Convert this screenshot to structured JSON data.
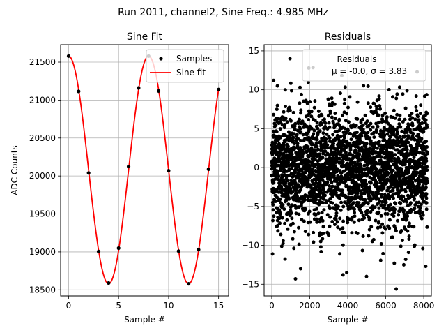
{
  "suptitle": "Run 2011, channel2, Sine Freq.: 4.985 MHz",
  "colors": {
    "samples": "#000000",
    "fit": "#ff0000",
    "grid": "#b0b0b0",
    "legend_border": "#cccccc"
  },
  "chart_data": [
    {
      "type": "line",
      "title": "Sine Fit",
      "xlabel": "Sample #",
      "ylabel": "ADC Counts",
      "xlim": [
        -0.8,
        16.0
      ],
      "ylim": [
        18420,
        21730
      ],
      "xticks": [
        0,
        5,
        10,
        15
      ],
      "xtick_labels": [
        "0",
        "5",
        "10",
        "15"
      ],
      "yticks": [
        18500,
        19000,
        19500,
        20000,
        20500,
        21000,
        21500
      ],
      "ytick_labels": [
        "18500",
        "19000",
        "19500",
        "20000",
        "20500",
        "21000",
        "21500"
      ],
      "grid": true,
      "legend_position": "top-right",
      "series": [
        {
          "name": "Samples",
          "kind": "scatter",
          "x": [
            0,
            1,
            2,
            3,
            4,
            5,
            6,
            7,
            8,
            9,
            10,
            11,
            12,
            13,
            14,
            15
          ],
          "y": [
            21580,
            21115,
            20040,
            19005,
            18590,
            19050,
            20125,
            21160,
            21580,
            21120,
            20070,
            19010,
            18580,
            19030,
            20090,
            21140
          ]
        },
        {
          "name": "Sine fit",
          "kind": "line",
          "model": {
            "offset": 20080,
            "amplitude": 1500,
            "period_samples": 8.0,
            "phase_deg": 0
          },
          "x_range": [
            0,
            15
          ]
        }
      ]
    },
    {
      "type": "scatter",
      "title": "Residuals",
      "xlabel": "Sample #",
      "ylabel": "",
      "xlim": [
        -400,
        8400
      ],
      "ylim": [
        -16.5,
        15.8
      ],
      "xticks": [
        0,
        2000,
        4000,
        6000,
        8000
      ],
      "xtick_labels": [
        "0",
        "2000",
        "4000",
        "6000",
        "8000"
      ],
      "yticks": [
        -15,
        -10,
        -5,
        0,
        5,
        10,
        15
      ],
      "ytick_labels": [
        "−15",
        "−10",
        "−5",
        "0",
        "5",
        "10",
        "15"
      ],
      "grid": true,
      "legend_position": "top-right",
      "legend_title": "Residuals",
      "legend_stats": "μ = -0.0, σ = 3.83",
      "mean": -0.0,
      "std": 3.83,
      "n_points": 8192,
      "notable_points": [
        {
          "x": 960,
          "y": 14.0
        },
        {
          "x": 1950,
          "y": 12.8
        },
        {
          "x": 1250,
          "y": -14.3
        },
        {
          "x": 3750,
          "y": -13.8
        },
        {
          "x": 3950,
          "y": -13.5
        },
        {
          "x": 6550,
          "y": -15.6
        },
        {
          "x": 1520,
          "y": -13.0
        },
        {
          "x": 6950,
          "y": -12.5
        },
        {
          "x": 7200,
          "y": -10.9
        },
        {
          "x": 7650,
          "y": 12.3
        },
        {
          "x": 7950,
          "y": -10.4
        },
        {
          "x": 100,
          "y": 11.2
        },
        {
          "x": 7050,
          "y": -11.8
        },
        {
          "x": 300,
          "y": 10.5
        },
        {
          "x": 2600,
          "y": -10.8
        }
      ]
    }
  ]
}
